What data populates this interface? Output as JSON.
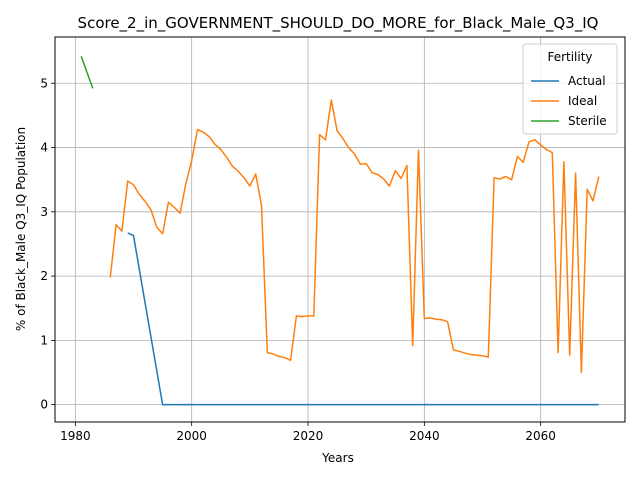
{
  "chart_data": {
    "type": "line",
    "title": "Score_2_in_GOVERNMENT_SHOULD_DO_MORE_for_Black_Male_Q3_IQ",
    "xlabel": "Years",
    "ylabel": "% of Black_Male Q3_IQ Population",
    "xlim": [
      1976.5,
      2074.5
    ],
    "ylim": [
      -0.27,
      5.72
    ],
    "xticks": [
      1980,
      2000,
      2020,
      2040,
      2060
    ],
    "yticks": [
      0,
      1,
      2,
      3,
      4,
      5
    ],
    "grid": true,
    "legend": {
      "title": "Fertility",
      "placement": "top-right"
    },
    "series": [
      {
        "name": "Actual",
        "color": "#1f77b4",
        "x": [
          1989,
          1990,
          1995,
          2000,
          2010,
          2020,
          2030,
          2040,
          2050,
          2060,
          2070
        ],
        "y": [
          2.67,
          2.63,
          0.0,
          0.0,
          0.0,
          0.0,
          0.0,
          0.0,
          0.0,
          0.0,
          0.0
        ]
      },
      {
        "name": "Ideal",
        "color": "#ff7f0e",
        "x": [
          1986,
          1987,
          1988,
          1989,
          1990,
          1991,
          1992,
          1993,
          1994,
          1995,
          1996,
          1997,
          1998,
          1999,
          2000,
          2001,
          2002,
          2003,
          2004,
          2005,
          2006,
          2007,
          2008,
          2009,
          2010,
          2011,
          2012,
          2013,
          2014,
          2015,
          2016,
          2017,
          2018,
          2019,
          2020,
          2021,
          2022,
          2023,
          2024,
          2025,
          2026,
          2027,
          2028,
          2029,
          2030,
          2031,
          2032,
          2033,
          2034,
          2035,
          2036,
          2037,
          2038,
          2039,
          2040,
          2041,
          2042,
          2043,
          2044,
          2045,
          2046,
          2047,
          2048,
          2049,
          2050,
          2051,
          2052,
          2053,
          2054,
          2055,
          2056,
          2057,
          2058,
          2059,
          2060,
          2061,
          2062,
          2063,
          2064,
          2065,
          2066,
          2067,
          2068,
          2069,
          2070
        ],
        "y": [
          1.98,
          2.8,
          2.7,
          3.48,
          3.42,
          3.27,
          3.16,
          3.03,
          2.76,
          2.66,
          3.15,
          3.07,
          2.98,
          3.44,
          3.8,
          4.28,
          4.24,
          4.17,
          4.05,
          3.97,
          3.85,
          3.71,
          3.63,
          3.53,
          3.4,
          3.59,
          3.1,
          0.81,
          0.79,
          0.75,
          0.73,
          0.69,
          1.38,
          1.37,
          1.38,
          1.38,
          4.2,
          4.12,
          4.74,
          4.26,
          4.14,
          4.0,
          3.9,
          3.74,
          3.75,
          3.61,
          3.58,
          3.51,
          3.4,
          3.64,
          3.52,
          3.72,
          0.92,
          3.96,
          1.34,
          1.35,
          1.33,
          1.32,
          1.29,
          0.85,
          0.83,
          0.8,
          0.78,
          0.77,
          0.76,
          0.74,
          3.53,
          3.51,
          3.55,
          3.5,
          3.86,
          3.77,
          4.09,
          4.12,
          4.04,
          3.97,
          3.92,
          0.81,
          3.78,
          0.77,
          3.6,
          0.5,
          3.35,
          3.17,
          3.55
        ]
      },
      {
        "name": "Sterile",
        "color": "#2ca02c",
        "x": [
          1981,
          1983
        ],
        "y": [
          5.42,
          4.92
        ]
      }
    ]
  }
}
